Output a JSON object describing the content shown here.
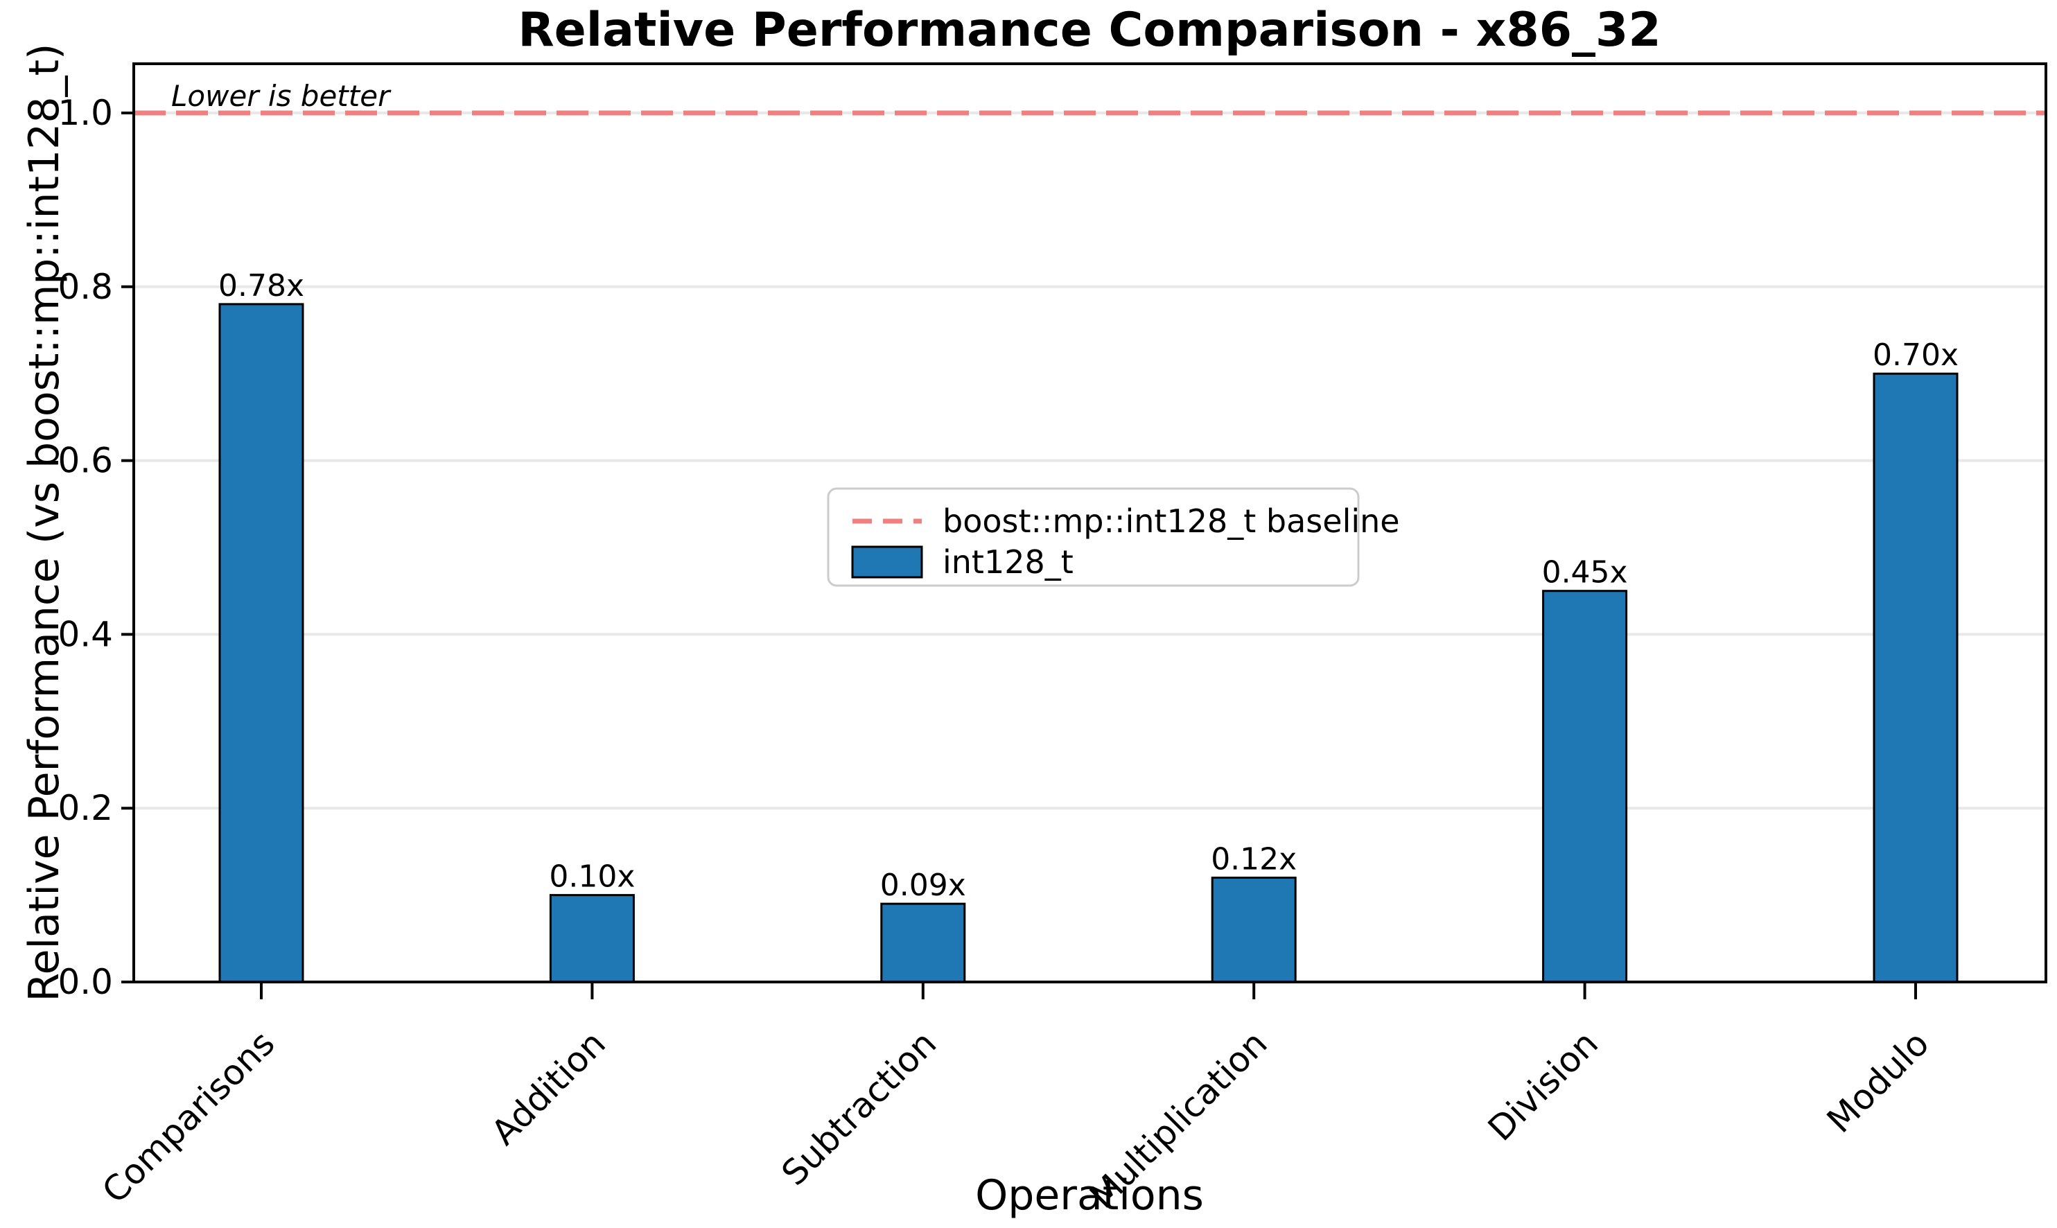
{
  "chart_data": {
    "type": "bar",
    "title": "Relative Performance Comparison - x86_32",
    "xlabel": "Operations",
    "ylabel": "Relative Performance (vs boost::mp::int128_t)",
    "categories": [
      "Comparisons",
      "Addition",
      "Subtraction",
      "Multiplication",
      "Division",
      "Modulo"
    ],
    "series": [
      {
        "name": "int128_t",
        "values": [
          0.78,
          0.1,
          0.09,
          0.12,
          0.45,
          0.7
        ]
      }
    ],
    "bar_labels": [
      "0.78x",
      "0.10x",
      "0.09x",
      "0.12x",
      "0.45x",
      "0.70x"
    ],
    "baseline": {
      "value": 1.0,
      "label": "boost::mp::int128_t baseline"
    },
    "annotation": "Lower is better",
    "y_ticks": [
      {
        "value": 0.0,
        "label": "0.0"
      },
      {
        "value": 0.2,
        "label": "0.2"
      },
      {
        "value": 0.4,
        "label": "0.4"
      },
      {
        "value": 0.6,
        "label": "0.6"
      },
      {
        "value": 0.8,
        "label": "0.8"
      },
      {
        "value": 1.0,
        "label": "1.0"
      }
    ],
    "ylim": [
      0,
      1.057
    ],
    "grid": "horizontal",
    "legend_position": "upper center",
    "colors": {
      "bar_fill": "#1f77b4",
      "bar_edge": "#000000",
      "baseline_line": "#f08080",
      "gridline": "#e8e8e8",
      "spine": "#000000",
      "legend_border": "#cccccc",
      "background": "#ffffff"
    }
  },
  "legend": {
    "items": [
      {
        "label": "boost::mp::int128_t baseline",
        "swatch": "dashed-line"
      },
      {
        "label": "int128_t",
        "swatch": "filled-box"
      }
    ]
  }
}
